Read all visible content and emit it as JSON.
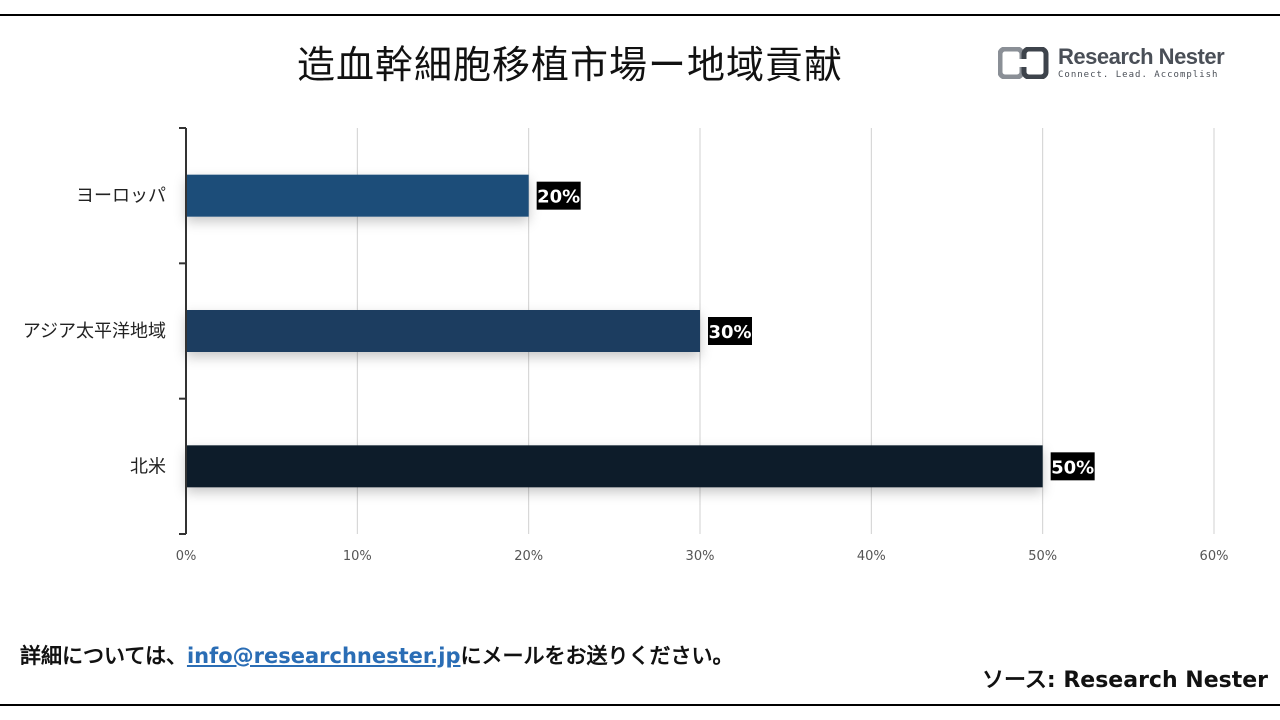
{
  "header": {
    "title": "造血幹細胞移植市場ー地域貢献",
    "logo_name": "Research Nester",
    "logo_tagline": "Connect. Lead. Accomplish"
  },
  "footer": {
    "contact_prefix": "詳細については、",
    "contact_email": "info@researchnester.jp",
    "contact_suffix": "にメールをお送りください。",
    "source": "ソース: Research Nester"
  },
  "colors": {
    "europe_bar": "#1f4e79",
    "apac_bar": "#1a3c61",
    "north_america_bar": "#0e1c2b",
    "label_bg": "#000000",
    "label_text": "#ffffff",
    "link": "#2a6db5"
  },
  "chart_data": {
    "type": "bar",
    "orientation": "horizontal",
    "categories": [
      "ヨーロッパ",
      "アジア太平洋地域",
      "北米"
    ],
    "values": [
      20,
      30,
      50
    ],
    "data_labels": [
      "20%",
      "30%",
      "50%"
    ],
    "xlim": [
      0,
      60
    ],
    "x_ticks": [
      "0%",
      "10%",
      "20%",
      "30%",
      "40%",
      "50%",
      "60%"
    ],
    "grid": true,
    "legend": "none"
  }
}
